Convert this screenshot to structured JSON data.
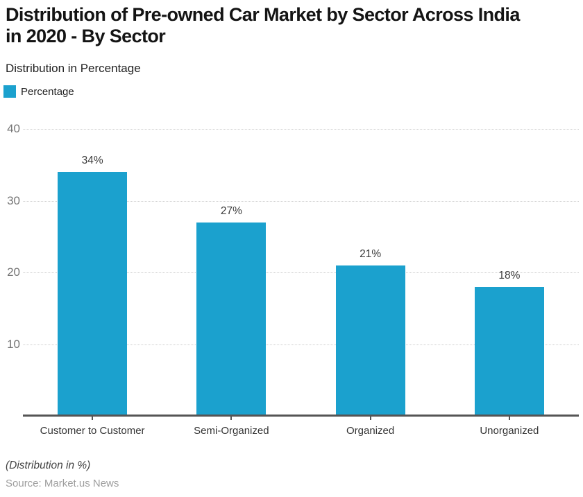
{
  "page": {
    "background": "#ffffff"
  },
  "header": {
    "title_line1": "Distribution of Pre-owned Car Market by Sector Across India",
    "title_line2": "in 2020 - By Sector",
    "subtitle": "Distribution in Percentage"
  },
  "legend": {
    "label": "Percentage",
    "swatch_color": "#1ba1ce"
  },
  "chart_data": {
    "type": "bar",
    "title": "Distribution of Pre-owned Car Market by Sector Across India in 2020 - By Sector",
    "subtitle": "Distribution in Percentage",
    "categories": [
      "Customer to Customer",
      "Semi-Organized",
      "Organized",
      "Unorganized"
    ],
    "series": [
      {
        "name": "Percentage",
        "color": "#1ba1ce",
        "values": [
          34,
          27,
          21,
          18
        ]
      }
    ],
    "value_labels": [
      "34%",
      "27%",
      "21%",
      "18%"
    ],
    "ylim": [
      0,
      40
    ],
    "yticks": [
      40,
      30,
      20,
      10
    ],
    "grid": "horizontal dotted",
    "legend_position": "top-left",
    "xlabel": "",
    "ylabel": ""
  },
  "footer": {
    "note": "(Distribution in %)",
    "source": "Source: Market.us News"
  },
  "style": {
    "page_bg": "#ffffff",
    "bar_color": "#1ba1ce",
    "gridline_color": "#cccccc",
    "axis_line_color": "#555555",
    "ytick_color": "#757575",
    "xlabel_color": "#333333",
    "value_label_color": "#3a3a3a"
  }
}
